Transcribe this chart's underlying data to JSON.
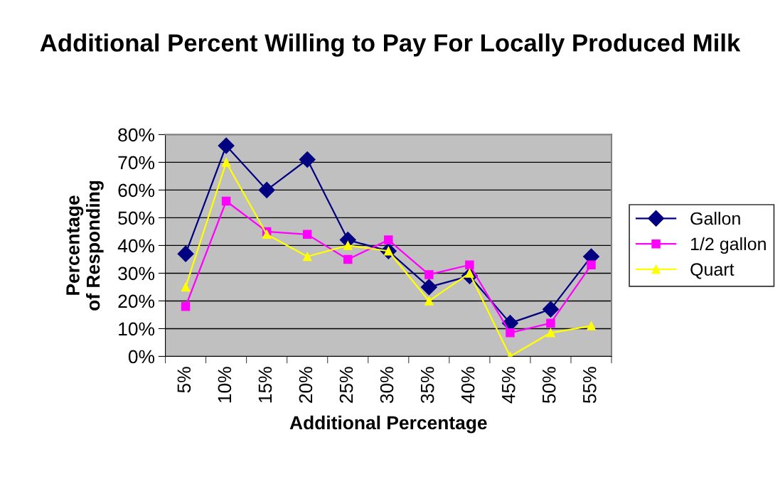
{
  "chart_data": {
    "type": "line",
    "title": "Additional Percent Willing to Pay For Locally Produced Milk",
    "xlabel": "Additional Percentage",
    "ylabel": "Percentage of Responding",
    "categories": [
      "5%",
      "10%",
      "15%",
      "20%",
      "25%",
      "30%",
      "35%",
      "40%",
      "45%",
      "50%",
      "55%"
    ],
    "series": [
      {
        "name": "Gallon",
        "color": "#000080",
        "marker": "diamond",
        "values": [
          37,
          76,
          60,
          71,
          42,
          38,
          25,
          29,
          12,
          17,
          36
        ]
      },
      {
        "name": "1/2 gallon",
        "color": "#ff00ff",
        "marker": "square",
        "values": [
          18,
          56,
          45,
          44,
          35,
          42,
          29.5,
          33,
          8.5,
          12,
          33
        ]
      },
      {
        "name": "Quart",
        "color": "#ffff00",
        "marker": "triangle",
        "values": [
          25,
          70,
          44,
          36,
          40,
          38,
          20,
          30,
          0,
          8.5,
          11
        ]
      }
    ],
    "ylim": [
      0,
      80
    ],
    "yticks": [
      {
        "value": 0,
        "label": "0%"
      },
      {
        "value": 10,
        "label": "10%"
      },
      {
        "value": 20,
        "label": "20%"
      },
      {
        "value": 30,
        "label": "30%"
      },
      {
        "value": 40,
        "label": "40%"
      },
      {
        "value": 50,
        "label": "50%"
      },
      {
        "value": 60,
        "label": "60%"
      },
      {
        "value": 70,
        "label": "70%"
      },
      {
        "value": 80,
        "label": "80%"
      }
    ],
    "grid": "y",
    "legend": "right",
    "line_style": "solid"
  }
}
